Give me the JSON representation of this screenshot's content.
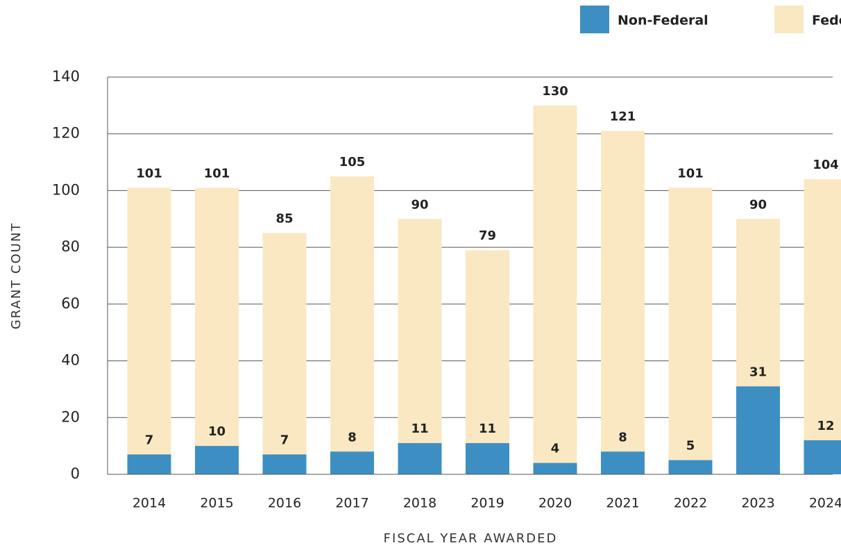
{
  "chart_data": {
    "type": "bar",
    "categories": [
      "2014",
      "2015",
      "2016",
      "2017",
      "2018",
      "2019",
      "2020",
      "2021",
      "2022",
      "2023",
      "2024"
    ],
    "series": [
      {
        "name": "Non-Federal",
        "color": "#3d8fc3",
        "values": [
          7,
          10,
          7,
          8,
          11,
          11,
          4,
          8,
          5,
          31,
          12
        ]
      },
      {
        "name": "Federal",
        "color": "#fae8c2",
        "values": [
          101,
          101,
          85,
          105,
          90,
          79,
          130,
          121,
          101,
          90,
          104
        ]
      }
    ],
    "ylim": [
      0,
      140
    ],
    "yticks": [
      0,
      20,
      40,
      60,
      80,
      100,
      120,
      140
    ],
    "grid": true,
    "y_label": "GRANT COUNT",
    "x_label": "FISCAL YEAR AWARDED",
    "legend": "top-right"
  }
}
